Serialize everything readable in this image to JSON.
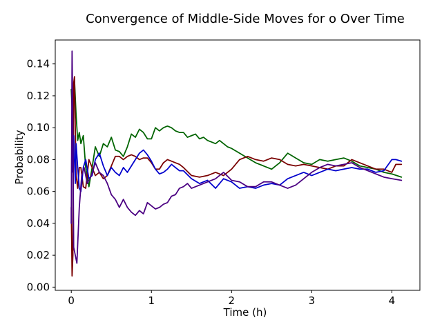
{
  "chart_data": {
    "type": "line",
    "title": "Convergence of Middle-Side Moves for o Over Time",
    "xlabel": "Time (h)",
    "ylabel": "Probability",
    "xlim": [
      -0.2,
      4.35
    ],
    "ylim": [
      -0.002,
      0.155
    ],
    "xticks": [
      0,
      1,
      2,
      3,
      4
    ],
    "yticks": [
      0.0,
      0.02,
      0.04,
      0.06,
      0.08,
      0.1,
      0.12,
      0.14
    ],
    "ytick_labels": [
      "0.00",
      "0.02",
      "0.04",
      "0.06",
      "0.08",
      "0.10",
      "0.12",
      "0.14"
    ],
    "grid": false,
    "legend": false,
    "series": [
      {
        "color": "#006400",
        "x": [
          0.0,
          0.02,
          0.04,
          0.06,
          0.08,
          0.1,
          0.12,
          0.15,
          0.18,
          0.22,
          0.26,
          0.3,
          0.35,
          0.4,
          0.45,
          0.5,
          0.55,
          0.6,
          0.65,
          0.7,
          0.75,
          0.8,
          0.85,
          0.9,
          0.95,
          1.0,
          1.05,
          1.1,
          1.15,
          1.2,
          1.25,
          1.3,
          1.35,
          1.4,
          1.45,
          1.5,
          1.55,
          1.6,
          1.65,
          1.7,
          1.75,
          1.8,
          1.85,
          1.9,
          1.95,
          2.0,
          2.1,
          2.2,
          2.3,
          2.4,
          2.5,
          2.6,
          2.7,
          2.8,
          2.9,
          3.0,
          3.1,
          3.2,
          3.3,
          3.4,
          3.5,
          3.6,
          3.7,
          3.8,
          3.9,
          4.0,
          4.12
        ],
        "y": [
          0.124,
          0.1,
          0.13,
          0.108,
          0.092,
          0.097,
          0.09,
          0.095,
          0.075,
          0.063,
          0.075,
          0.088,
          0.082,
          0.09,
          0.088,
          0.094,
          0.086,
          0.085,
          0.082,
          0.088,
          0.096,
          0.094,
          0.099,
          0.097,
          0.093,
          0.093,
          0.1,
          0.098,
          0.1,
          0.101,
          0.1,
          0.098,
          0.097,
          0.097,
          0.094,
          0.095,
          0.096,
          0.093,
          0.094,
          0.092,
          0.091,
          0.09,
          0.092,
          0.09,
          0.088,
          0.087,
          0.084,
          0.081,
          0.078,
          0.076,
          0.074,
          0.078,
          0.084,
          0.081,
          0.078,
          0.077,
          0.08,
          0.079,
          0.08,
          0.081,
          0.079,
          0.076,
          0.075,
          0.074,
          0.072,
          0.071,
          0.069
        ]
      },
      {
        "color": "#7a0000",
        "x": [
          0.0,
          0.01,
          0.02,
          0.03,
          0.04,
          0.05,
          0.06,
          0.08,
          0.1,
          0.12,
          0.15,
          0.18,
          0.22,
          0.26,
          0.3,
          0.35,
          0.4,
          0.45,
          0.5,
          0.55,
          0.6,
          0.65,
          0.7,
          0.75,
          0.8,
          0.85,
          0.9,
          0.95,
          1.0,
          1.05,
          1.1,
          1.15,
          1.2,
          1.25,
          1.3,
          1.35,
          1.4,
          1.5,
          1.6,
          1.7,
          1.8,
          1.9,
          2.0,
          2.1,
          2.2,
          2.3,
          2.4,
          2.5,
          2.6,
          2.7,
          2.8,
          2.9,
          3.0,
          3.1,
          3.2,
          3.3,
          3.4,
          3.5,
          3.6,
          3.7,
          3.8,
          3.9,
          4.0,
          4.05,
          4.12
        ],
        "y": [
          0.05,
          0.007,
          0.02,
          0.128,
          0.132,
          0.1,
          0.07,
          0.062,
          0.075,
          0.075,
          0.063,
          0.062,
          0.08,
          0.075,
          0.07,
          0.072,
          0.068,
          0.07,
          0.076,
          0.082,
          0.082,
          0.08,
          0.082,
          0.083,
          0.082,
          0.08,
          0.081,
          0.081,
          0.078,
          0.074,
          0.074,
          0.078,
          0.08,
          0.079,
          0.078,
          0.077,
          0.075,
          0.07,
          0.069,
          0.07,
          0.072,
          0.07,
          0.074,
          0.08,
          0.082,
          0.08,
          0.079,
          0.081,
          0.08,
          0.077,
          0.076,
          0.077,
          0.076,
          0.075,
          0.074,
          0.076,
          0.076,
          0.08,
          0.078,
          0.076,
          0.074,
          0.074,
          0.072,
          0.077,
          0.077
        ]
      },
      {
        "color": "#0000cd",
        "x": [
          0.0,
          0.01,
          0.02,
          0.03,
          0.04,
          0.05,
          0.06,
          0.08,
          0.1,
          0.12,
          0.15,
          0.18,
          0.22,
          0.26,
          0.3,
          0.35,
          0.4,
          0.45,
          0.5,
          0.55,
          0.6,
          0.65,
          0.7,
          0.75,
          0.8,
          0.85,
          0.9,
          0.95,
          1.0,
          1.05,
          1.1,
          1.15,
          1.2,
          1.25,
          1.3,
          1.35,
          1.4,
          1.5,
          1.6,
          1.7,
          1.8,
          1.9,
          2.0,
          2.1,
          2.2,
          2.3,
          2.4,
          2.5,
          2.6,
          2.7,
          2.8,
          2.9,
          3.0,
          3.1,
          3.2,
          3.3,
          3.4,
          3.5,
          3.6,
          3.7,
          3.8,
          3.9,
          4.0,
          4.05,
          4.12
        ],
        "y": [
          0.04,
          0.112,
          0.072,
          0.095,
          0.08,
          0.065,
          0.09,
          0.075,
          0.062,
          0.06,
          0.075,
          0.08,
          0.068,
          0.07,
          0.08,
          0.084,
          0.076,
          0.07,
          0.075,
          0.072,
          0.07,
          0.075,
          0.072,
          0.076,
          0.08,
          0.084,
          0.086,
          0.083,
          0.079,
          0.074,
          0.071,
          0.072,
          0.074,
          0.077,
          0.075,
          0.073,
          0.073,
          0.068,
          0.065,
          0.067,
          0.062,
          0.068,
          0.066,
          0.062,
          0.063,
          0.062,
          0.064,
          0.065,
          0.064,
          0.068,
          0.07,
          0.072,
          0.07,
          0.072,
          0.074,
          0.073,
          0.074,
          0.075,
          0.074,
          0.074,
          0.072,
          0.073,
          0.08,
          0.08,
          0.079
        ]
      },
      {
        "color": "#4b0082",
        "x": [
          0.0,
          0.01,
          0.02,
          0.03,
          0.05,
          0.07,
          0.1,
          0.13,
          0.16,
          0.2,
          0.25,
          0.3,
          0.35,
          0.4,
          0.45,
          0.5,
          0.55,
          0.6,
          0.65,
          0.7,
          0.75,
          0.8,
          0.85,
          0.9,
          0.95,
          1.0,
          1.05,
          1.1,
          1.15,
          1.2,
          1.25,
          1.3,
          1.35,
          1.4,
          1.45,
          1.5,
          1.6,
          1.7,
          1.8,
          1.9,
          2.0,
          2.1,
          2.2,
          2.3,
          2.4,
          2.5,
          2.6,
          2.7,
          2.8,
          2.9,
          3.0,
          3.1,
          3.2,
          3.3,
          3.4,
          3.5,
          3.6,
          3.7,
          3.8,
          3.9,
          4.0,
          4.12
        ],
        "y": [
          0.04,
          0.148,
          0.1,
          0.025,
          0.02,
          0.015,
          0.05,
          0.07,
          0.075,
          0.065,
          0.07,
          0.078,
          0.072,
          0.07,
          0.065,
          0.058,
          0.055,
          0.05,
          0.055,
          0.05,
          0.047,
          0.045,
          0.048,
          0.046,
          0.053,
          0.051,
          0.049,
          0.05,
          0.052,
          0.053,
          0.057,
          0.058,
          0.062,
          0.063,
          0.065,
          0.062,
          0.064,
          0.066,
          0.068,
          0.072,
          0.067,
          0.066,
          0.063,
          0.063,
          0.066,
          0.066,
          0.064,
          0.062,
          0.064,
          0.068,
          0.072,
          0.075,
          0.077,
          0.076,
          0.077,
          0.078,
          0.075,
          0.073,
          0.071,
          0.069,
          0.068,
          0.067
        ]
      }
    ]
  }
}
